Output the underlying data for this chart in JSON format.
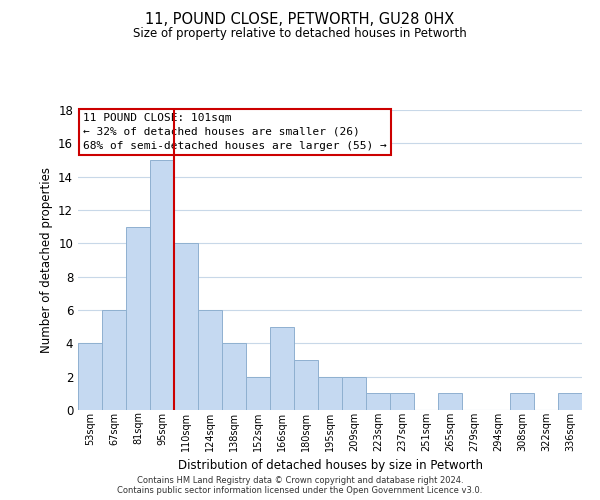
{
  "title": "11, POUND CLOSE, PETWORTH, GU28 0HX",
  "subtitle": "Size of property relative to detached houses in Petworth",
  "xlabel": "Distribution of detached houses by size in Petworth",
  "ylabel": "Number of detached properties",
  "bar_labels": [
    "53sqm",
    "67sqm",
    "81sqm",
    "95sqm",
    "110sqm",
    "124sqm",
    "138sqm",
    "152sqm",
    "166sqm",
    "180sqm",
    "195sqm",
    "209sqm",
    "223sqm",
    "237sqm",
    "251sqm",
    "265sqm",
    "279sqm",
    "294sqm",
    "308sqm",
    "322sqm",
    "336sqm"
  ],
  "bar_values": [
    4,
    6,
    11,
    15,
    10,
    6,
    4,
    2,
    5,
    3,
    2,
    2,
    1,
    1,
    0,
    1,
    0,
    0,
    1,
    0,
    1
  ],
  "bar_color": "#c5d9f1",
  "bar_edge_color": "#8fb0d0",
  "ylim": [
    0,
    18
  ],
  "yticks": [
    0,
    2,
    4,
    6,
    8,
    10,
    12,
    14,
    16,
    18
  ],
  "property_line_x": 3.5,
  "property_line_color": "#cc0000",
  "annotation_title": "11 POUND CLOSE: 101sqm",
  "annotation_line1": "← 32% of detached houses are smaller (26)",
  "annotation_line2": "68% of semi-detached houses are larger (55) →",
  "annotation_box_color": "#ffffff",
  "annotation_box_edge": "#cc0000",
  "footnote1": "Contains HM Land Registry data © Crown copyright and database right 2024.",
  "footnote2": "Contains public sector information licensed under the Open Government Licence v3.0.",
  "background_color": "#ffffff",
  "grid_color": "#c8d8e8"
}
